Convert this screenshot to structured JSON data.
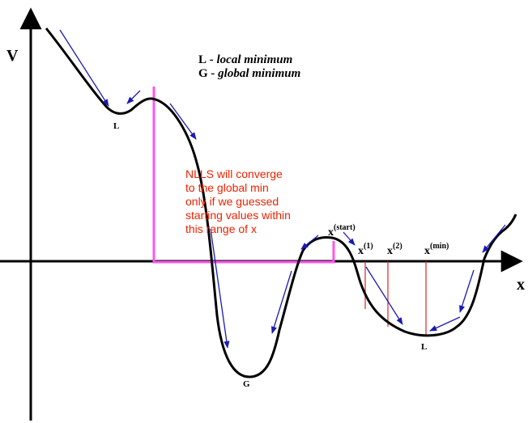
{
  "axes": {
    "y_label": "V",
    "x_label": "x"
  },
  "legend": {
    "local": {
      "letter": "L",
      "text": " - local minimum"
    },
    "global": {
      "letter": "G",
      "text": " - global minimum"
    }
  },
  "point_labels": {
    "local_left": "L",
    "global": "G",
    "local_right": "L"
  },
  "x_markers": {
    "start": {
      "base": "x",
      "sup": "(start)"
    },
    "first": {
      "base": "x",
      "sup": "(1)"
    },
    "second": {
      "base": "x",
      "sup": "(2)"
    },
    "min": {
      "base": "x",
      "sup": "(min)"
    }
  },
  "annotation": [
    "NLLS will converge",
    "to the global min",
    "only if we guessed",
    "starting values within",
    "this range of x"
  ],
  "colors": {
    "curve": "#000000",
    "axes": "#000000",
    "arrows": "#1a1ab8",
    "range_bracket": "#ff55ee",
    "marker_lines": "#dd2222",
    "annotation_text": "#ee2200"
  }
}
